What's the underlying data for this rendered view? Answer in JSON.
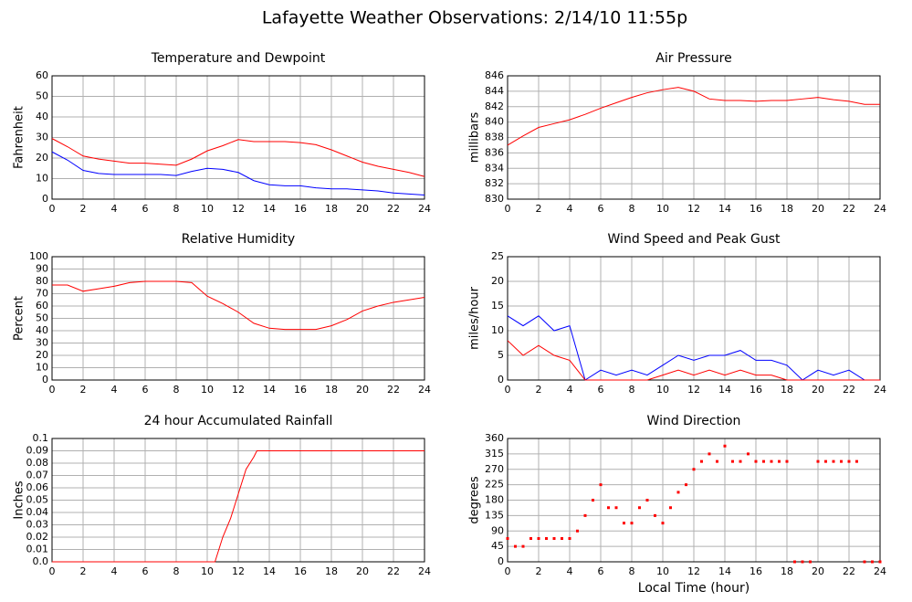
{
  "title": "Lafayette Weather Observations: 2/14/10 11:55p",
  "xlabel": "Local Time (hour)",
  "chart_data": [
    {
      "type": "line",
      "title": "Temperature and Dewpoint",
      "ylabel": "Fahrenheit",
      "x": [
        0,
        1,
        2,
        3,
        4,
        5,
        6,
        7,
        8,
        9,
        10,
        11,
        12,
        13,
        14,
        15,
        16,
        17,
        18,
        19,
        20,
        21,
        22,
        23,
        24
      ],
      "series": [
        {
          "color": "#ff0000",
          "values": [
            29.5,
            25.5,
            21,
            19.5,
            18.5,
            17.5,
            17.5,
            17,
            16.5,
            19.5,
            23.5,
            26,
            29,
            28,
            28,
            28,
            27.5,
            26.5,
            24,
            21,
            18,
            16,
            14.5,
            13,
            11
          ]
        },
        {
          "color": "#0000ff",
          "values": [
            23,
            19,
            14,
            12.5,
            12,
            12,
            12,
            12,
            11.5,
            13.5,
            15,
            14.5,
            13,
            9,
            7,
            6.5,
            6.5,
            5.5,
            5,
            5,
            4.5,
            4,
            3,
            2.5,
            2
          ]
        }
      ],
      "xlim": [
        0,
        24
      ],
      "xticks": [
        0,
        2,
        4,
        6,
        8,
        10,
        12,
        14,
        16,
        18,
        20,
        22,
        24
      ],
      "ylim": [
        0,
        60
      ],
      "yticks": [
        0,
        10,
        20,
        30,
        40,
        50,
        60
      ],
      "grid": true
    },
    {
      "type": "line",
      "title": "Air Pressure",
      "ylabel": "millibars",
      "x": [
        0,
        1,
        2,
        3,
        4,
        5,
        6,
        7,
        8,
        9,
        10,
        11,
        12,
        13,
        14,
        15,
        16,
        17,
        18,
        19,
        20,
        21,
        22,
        23,
        24
      ],
      "series": [
        {
          "color": "#ff0000",
          "values": [
            837,
            838.2,
            839.3,
            839.8,
            840.3,
            841,
            841.8,
            842.5,
            843.2,
            843.8,
            844.2,
            844.5,
            844,
            843,
            842.8,
            842.8,
            842.7,
            842.8,
            842.8,
            843,
            843.2,
            842.9,
            842.7,
            842.3,
            842.3
          ]
        }
      ],
      "xlim": [
        0,
        24
      ],
      "xticks": [
        0,
        2,
        4,
        6,
        8,
        10,
        12,
        14,
        16,
        18,
        20,
        22,
        24
      ],
      "ylim": [
        830,
        846
      ],
      "yticks": [
        830,
        832,
        834,
        836,
        838,
        840,
        842,
        844,
        846
      ],
      "grid": true
    },
    {
      "type": "line",
      "title": "Relative Humidity",
      "ylabel": "Percent",
      "x": [
        0,
        1,
        2,
        3,
        4,
        5,
        6,
        7,
        8,
        9,
        10,
        11,
        12,
        13,
        14,
        15,
        16,
        17,
        18,
        19,
        20,
        21,
        22,
        23,
        24
      ],
      "series": [
        {
          "color": "#ff0000",
          "values": [
            77,
            77,
            72,
            74,
            76,
            79,
            80,
            80,
            80,
            79,
            68,
            62,
            55,
            46,
            42,
            41,
            41,
            41,
            44,
            49,
            56,
            60,
            63,
            65,
            67
          ]
        }
      ],
      "xlim": [
        0,
        24
      ],
      "xticks": [
        0,
        2,
        4,
        6,
        8,
        10,
        12,
        14,
        16,
        18,
        20,
        22,
        24
      ],
      "ylim": [
        0,
        100
      ],
      "yticks": [
        0,
        10,
        20,
        30,
        40,
        50,
        60,
        70,
        80,
        90,
        100
      ],
      "grid": true
    },
    {
      "type": "line",
      "title": "Wind Speed and Peak Gust",
      "ylabel": "miles/hour",
      "x": [
        0,
        1,
        2,
        3,
        4,
        5,
        6,
        7,
        8,
        9,
        10,
        11,
        12,
        13,
        14,
        15,
        16,
        17,
        18,
        19,
        20,
        21,
        22,
        23,
        24
      ],
      "series": [
        {
          "color": "#0000ff",
          "values": [
            13,
            11,
            13,
            10,
            11,
            0,
            2,
            1,
            2,
            1,
            3,
            5,
            4,
            5,
            5,
            6,
            4,
            4,
            3,
            0,
            2,
            1,
            2,
            0,
            0
          ]
        },
        {
          "color": "#ff0000",
          "values": [
            8,
            5,
            7,
            5,
            4,
            0,
            0,
            0,
            0,
            0,
            1,
            2,
            1,
            2,
            1,
            2,
            1,
            1,
            0,
            0,
            0,
            0,
            0,
            0,
            0
          ]
        }
      ],
      "xlim": [
        0,
        24
      ],
      "xticks": [
        0,
        2,
        4,
        6,
        8,
        10,
        12,
        14,
        16,
        18,
        20,
        22,
        24
      ],
      "ylim": [
        0,
        25
      ],
      "yticks": [
        0,
        5,
        10,
        15,
        20,
        25
      ],
      "grid": true
    },
    {
      "type": "line",
      "title": "24 hour Accumulated Rainfall",
      "ylabel": "Inches",
      "x": [
        0,
        10.5,
        11,
        11.5,
        12,
        12.5,
        13,
        13.2,
        24
      ],
      "series": [
        {
          "color": "#ff0000",
          "values": [
            0,
            0,
            0.02,
            0.035,
            0.055,
            0.075,
            0.085,
            0.09,
            0.09
          ]
        }
      ],
      "xlim": [
        0,
        24
      ],
      "xticks": [
        0,
        2,
        4,
        6,
        8,
        10,
        12,
        14,
        16,
        18,
        20,
        22,
        24
      ],
      "ylim": [
        0,
        0.1
      ],
      "yticks": [
        {
          "value": 0,
          "label": "0.0"
        },
        0.01,
        0.02,
        0.03,
        0.04,
        0.05,
        0.06,
        0.07,
        0.08,
        0.09,
        0.1
      ],
      "grid": true
    },
    {
      "type": "scatter",
      "title": "Wind Direction",
      "ylabel": "degrees",
      "x": [
        0,
        0.5,
        1,
        1.5,
        2,
        2.5,
        3,
        3.5,
        4,
        4.5,
        5,
        5.5,
        6,
        6.5,
        7,
        7.5,
        8,
        8.5,
        9,
        9.5,
        10,
        10.5,
        11,
        11.5,
        12,
        12.5,
        13,
        13.5,
        14,
        14.5,
        15,
        15.5,
        16,
        16.5,
        17,
        17.5,
        18,
        18.5,
        19,
        19.5,
        20,
        20.5,
        21,
        21.5,
        22,
        22.5,
        23,
        23.5,
        24
      ],
      "series": [
        {
          "color": "#ff0000",
          "values": [
            68,
            45,
            45,
            68,
            68,
            68,
            68,
            68,
            68,
            90,
            135,
            180,
            225,
            158,
            158,
            113,
            113,
            158,
            180,
            135,
            113,
            158,
            203,
            225,
            270,
            293,
            315,
            293,
            338,
            293,
            293,
            315,
            293,
            293,
            293,
            293,
            293,
            0,
            0,
            0,
            293,
            293,
            293,
            293,
            293,
            293,
            0,
            0,
            0
          ]
        }
      ],
      "xlim": [
        0,
        24
      ],
      "xticks": [
        0,
        2,
        4,
        6,
        8,
        10,
        12,
        14,
        16,
        18,
        20,
        22,
        24
      ],
      "ylim": [
        0,
        360
      ],
      "yticks": [
        0,
        45,
        90,
        135,
        180,
        225,
        270,
        315,
        360
      ],
      "grid": true
    }
  ]
}
